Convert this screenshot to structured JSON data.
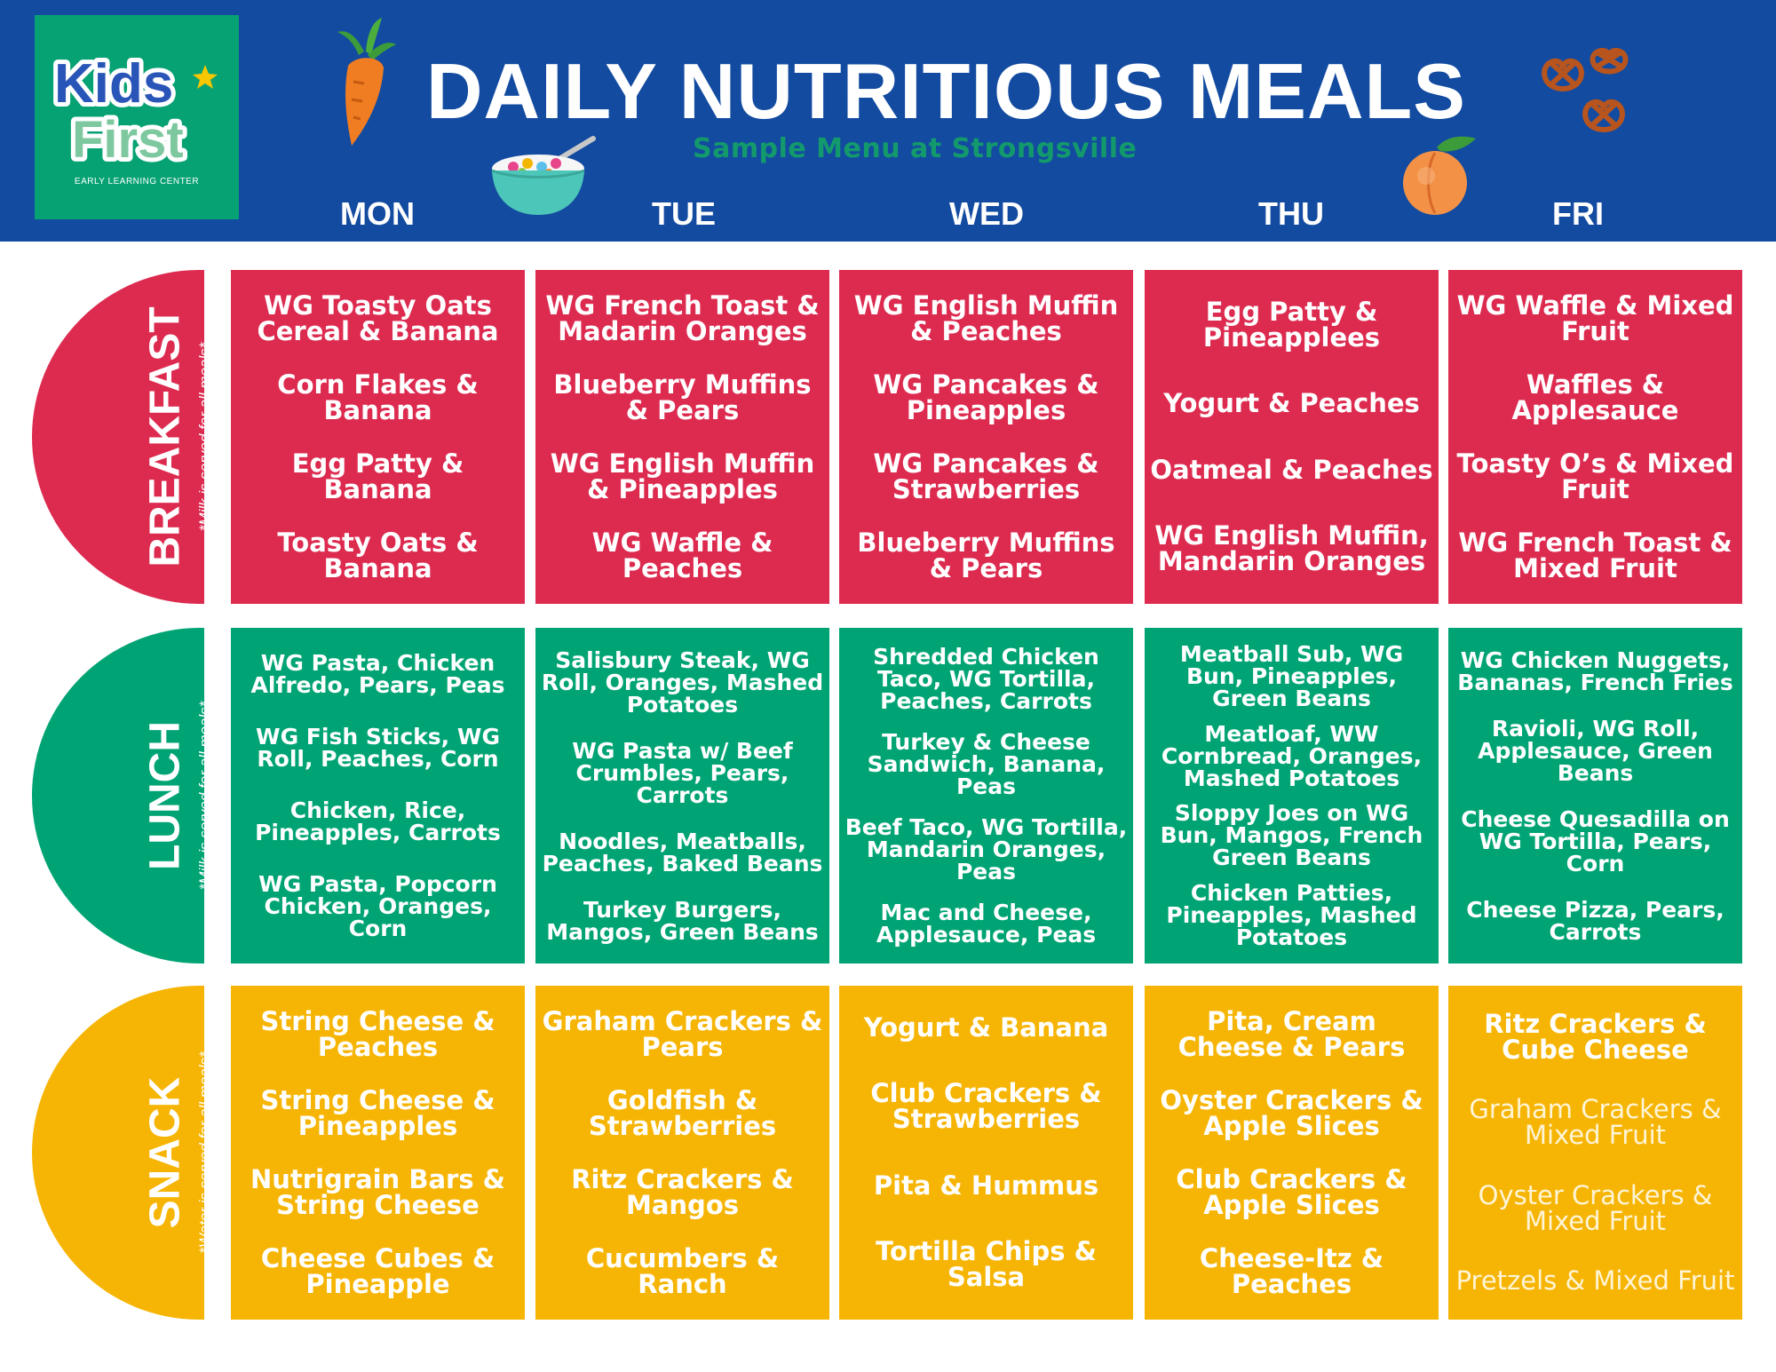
{
  "header": {
    "title": "DAILY NUTRITIOUS MEALS",
    "subtitle": "Sample Menu at Strongsville",
    "logo": {
      "line1": "Kids",
      "line2": "First",
      "sub": "EARLY LEARNING CENTER"
    },
    "days": [
      "MON",
      "TUE",
      "WED",
      "THU",
      "FRI"
    ]
  },
  "colors": {
    "header": "#134ba0",
    "breakfast": "#dd2b50",
    "lunch": "#00a474",
    "snack": "#f6b504"
  },
  "sections": [
    {
      "label": "BREAKFAST",
      "note": "*Milk is served for all meals*",
      "cells": [
        [
          "WG Toasty Oats Cereal & Banana",
          "Corn Flakes & Banana",
          "Egg Patty & Banana",
          "Toasty Oats & Banana"
        ],
        [
          "WG French Toast & Madarin Oranges",
          "Blueberry Muffins & Pears",
          "WG English Muffin & Pineapples",
          "WG Waffle & Peaches"
        ],
        [
          "WG English Muffin & Peaches",
          "WG Pancakes & Pineapples",
          "WG Pancakes & Strawberries",
          "Blueberry Muffins & Pears"
        ],
        [
          "Egg Patty & Pineapplees",
          "Yogurt & Peaches",
          "Oatmeal & Peaches",
          "WG English Muffin, Mandarin Oranges"
        ],
        [
          "WG Waffle & Mixed Fruit",
          "Waffles & Applesauce",
          "Toasty O’s & Mixed Fruit",
          "WG French Toast & Mixed Fruit"
        ]
      ]
    },
    {
      "label": "LUNCH",
      "note": "*Milk is served for all meals*",
      "cells": [
        [
          "WG Pasta, Chicken Alfredo, Pears, Peas",
          "WG Fish Sticks, WG Roll, Peaches, Corn",
          "Chicken, Rice, Pineapples, Carrots",
          "WG Pasta, Popcorn Chicken, Oranges, Corn"
        ],
        [
          "Salisbury Steak, WG Roll, Oranges, Mashed Potatoes",
          "WG Pasta w/ Beef Crumbles, Pears, Carrots",
          "Noodles, Meatballs, Peaches, Baked Beans",
          "Turkey Burgers, Mangos, Green Beans"
        ],
        [
          "Shredded Chicken Taco, WG Tortilla, Peaches, Carrots",
          "Turkey & Cheese Sandwich, Banana, Peas",
          "Beef Taco, WG Tortilla, Mandarin Oranges, Peas",
          "Mac and Cheese, Applesauce, Peas"
        ],
        [
          "Meatball Sub, WG Bun, Pineapples, Green Beans",
          "Meatloaf, WW Cornbread, Oranges, Mashed Potatoes",
          "Sloppy Joes on WG Bun, Mangos, French Green Beans",
          "Chicken Patties, Pineapples, Mashed Potatoes"
        ],
        [
          "WG Chicken Nuggets, Bananas, French Fries",
          "Ravioli, WG Roll, Applesauce, Green Beans",
          "Cheese Quesadilla on WG Tortilla, Pears, Corn",
          "Cheese Pizza, Pears, Carrots"
        ]
      ]
    },
    {
      "label": "SNACK",
      "note": "*Water is served for all meals*",
      "cells": [
        [
          "String Cheese & Peaches",
          "String Cheese & Pineapples",
          "Nutrigrain Bars & String Cheese",
          "Cheese Cubes & Pineapple"
        ],
        [
          "Graham Crackers & Pears",
          "Goldfish & Strawberries",
          "Ritz Crackers & Mangos",
          "Cucumbers & Ranch"
        ],
        [
          "Yogurt & Banana",
          "Club Crackers & Strawberries",
          "Pita & Hummus",
          "Tortilla Chips & Salsa"
        ],
        [
          "Pita, Cream Cheese & Pears",
          "Oyster Crackers & Apple Slices",
          "Club Crackers & Apple Slices",
          "Cheese-Itz & Peaches"
        ],
        [
          "Ritz Crackers & Cube Cheese",
          "Graham Crackers & Mixed Fruit",
          "Oyster Crackers & Mixed Fruit",
          "Pretzels & Mixed Fruit"
        ]
      ]
    }
  ]
}
